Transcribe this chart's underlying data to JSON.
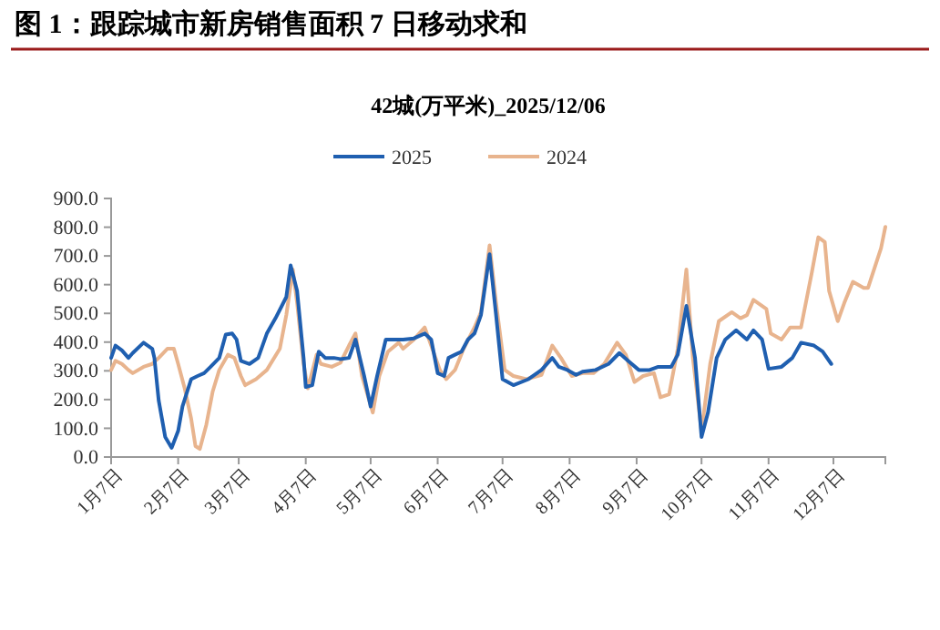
{
  "chart_data": {
    "type": "line",
    "title": "图 1：跟踪城市新房销售面积 7 日移动求和",
    "subtitle": "42城(万平米)_2025/12/06",
    "legend": "top",
    "grid": false,
    "marker": "none",
    "line_style": "solid",
    "xlim": [
      "--01-07",
      "--12-31"
    ],
    "xticks": [
      {
        "value": "--01-07",
        "label": "1月7日"
      },
      {
        "value": "--02-07",
        "label": "2月7日"
      },
      {
        "value": "--03-07",
        "label": "3月7日"
      },
      {
        "value": "--04-07",
        "label": "4月7日"
      },
      {
        "value": "--05-07",
        "label": "5月7日"
      },
      {
        "value": "--06-07",
        "label": "6月7日"
      },
      {
        "value": "--07-07",
        "label": "7月7日"
      },
      {
        "value": "--08-07",
        "label": "8月7日"
      },
      {
        "value": "--09-07",
        "label": "9月7日"
      },
      {
        "value": "--10-07",
        "label": "10月7日"
      },
      {
        "value": "--11-07",
        "label": "11月7日"
      },
      {
        "value": "--12-07",
        "label": "12月7日"
      }
    ],
    "ylim": [
      0,
      900
    ],
    "yticks": [
      {
        "value": 0,
        "label": "0.0"
      },
      {
        "value": 100,
        "label": "100.0"
      },
      {
        "value": 200,
        "label": "200.0"
      },
      {
        "value": 300,
        "label": "300.0"
      },
      {
        "value": 400,
        "label": "400.0"
      },
      {
        "value": 500,
        "label": "500.0"
      },
      {
        "value": 600,
        "label": "600.0"
      },
      {
        "value": 700,
        "label": "700.0"
      },
      {
        "value": 800,
        "label": "800.0"
      },
      {
        "value": 900,
        "label": "900.0"
      }
    ],
    "series": [
      {
        "name": "2025",
        "color": "#1f5fb0",
        "x": [
          "--01-07",
          "--01-09",
          "--01-12",
          "--01-15",
          "--01-17",
          "--01-22",
          "--01-26",
          "--01-27",
          "--01-29",
          "--02-01",
          "--02-04",
          "--02-07",
          "--02-09",
          "--02-13",
          "--02-16",
          "--02-19",
          "--02-22",
          "--02-26",
          "--03-01",
          "--03-04",
          "--03-06",
          "--03-08",
          "--03-12",
          "--03-16",
          "--03-20",
          "--03-24",
          "--03-29",
          "--03-31",
          "--04-03",
          "--04-06",
          "--04-07",
          "--04-10",
          "--04-13",
          "--04-16",
          "--04-20",
          "--04-23",
          "--04-27",
          "--04-30",
          "--05-04",
          "--05-07",
          "--05-10",
          "--05-14",
          "--05-18",
          "--05-22",
          "--05-27",
          "--06-01",
          "--06-04",
          "--06-07",
          "--06-10",
          "--06-12",
          "--06-15",
          "--06-18",
          "--06-21",
          "--06-24",
          "--06-27",
          "--07-01",
          "--07-04",
          "--07-07",
          "--07-12",
          "--07-19",
          "--07-25",
          "--07-30",
          "--08-02",
          "--08-06",
          "--08-10",
          "--08-13",
          "--08-19",
          "--08-25",
          "--08-30",
          "--09-03",
          "--09-08",
          "--09-13",
          "--09-17",
          "--09-23",
          "--09-26",
          "--09-30",
          "--10-04",
          "--10-07",
          "--10-10",
          "--10-14",
          "--10-18",
          "--10-23",
          "--10-28",
          "--10-31",
          "--11-04",
          "--11-07",
          "--11-13",
          "--11-18",
          "--11-22",
          "--11-28",
          "--12-02",
          "--12-06"
        ],
        "values": [
          345,
          388,
          371,
          345,
          362,
          398,
          377,
          345,
          197,
          70,
          32,
          91,
          176,
          271,
          282,
          292,
          314,
          345,
          426,
          430,
          409,
          335,
          324,
          345,
          430,
          483,
          557,
          667,
          578,
          345,
          244,
          250,
          367,
          345,
          345,
          341,
          345,
          409,
          282,
          176,
          282,
          409,
          409,
          409,
          413,
          430,
          409,
          292,
          282,
          345,
          356,
          367,
          409,
          430,
          494,
          706,
          494,
          271,
          250,
          271,
          303,
          345,
          314,
          303,
          286,
          297,
          303,
          324,
          362,
          335,
          303,
          303,
          314,
          314,
          356,
          526,
          345,
          70,
          155,
          345,
          409,
          441,
          409,
          441,
          409,
          307,
          314,
          345,
          398,
          388,
          367,
          324
        ]
      },
      {
        "name": "2024",
        "color": "#e8b48e",
        "x": [
          "--01-07",
          "--01-09",
          "--01-12",
          "--01-15",
          "--01-17",
          "--01-22",
          "--01-26",
          "--01-29",
          "--02-02",
          "--02-05",
          "--02-07",
          "--02-10",
          "--02-13",
          "--02-15",
          "--02-17",
          "--02-20",
          "--02-23",
          "--02-26",
          "--03-02",
          "--03-05",
          "--03-08",
          "--03-10",
          "--03-15",
          "--03-20",
          "--03-26",
          "--03-29",
          "--04-01",
          "--04-03",
          "--04-06",
          "--04-08",
          "--04-12",
          "--04-14",
          "--04-19",
          "--04-23",
          "--04-27",
          "--04-30",
          "--05-03",
          "--05-08",
          "--05-11",
          "--05-15",
          "--05-20",
          "--05-22",
          "--05-27",
          "--06-01",
          "--06-04",
          "--06-08",
          "--06-11",
          "--06-15",
          "--06-19",
          "--06-24",
          "--06-27",
          "--07-01",
          "--07-04",
          "--07-08",
          "--07-12",
          "--07-18",
          "--07-25",
          "--07-30",
          "--08-03",
          "--08-08",
          "--08-13",
          "--08-18",
          "--08-23",
          "--08-29",
          "--09-02",
          "--09-06",
          "--09-10",
          "--09-15",
          "--09-18",
          "--09-22",
          "--09-26",
          "--09-30",
          "--10-03",
          "--10-07",
          "--10-11",
          "--10-15",
          "--10-21",
          "--10-25",
          "--10-28",
          "--10-31",
          "--11-06",
          "--11-08",
          "--11-13",
          "--11-17",
          "--11-22",
          "--11-27",
          "--11-30",
          "--12-03",
          "--12-05",
          "--12-09",
          "--12-12",
          "--12-16",
          "--12-21",
          "--12-23",
          "--12-29",
          "--12-31"
        ],
        "values": [
          303,
          335,
          324,
          303,
          292,
          314,
          324,
          345,
          377,
          377,
          324,
          239,
          134,
          38,
          28,
          112,
          229,
          303,
          356,
          345,
          282,
          250,
          271,
          303,
          377,
          494,
          653,
          536,
          324,
          239,
          356,
          324,
          314,
          328,
          388,
          430,
          282,
          155,
          282,
          367,
          398,
          377,
          409,
          451,
          388,
          303,
          271,
          303,
          377,
          451,
          504,
          737,
          536,
          303,
          282,
          271,
          286,
          388,
          345,
          282,
          292,
          292,
          324,
          398,
          356,
          261,
          282,
          292,
          208,
          218,
          377,
          653,
          345,
          91,
          324,
          473,
          504,
          483,
          494,
          547,
          515,
          430,
          409,
          451,
          451,
          642,
          765,
          748,
          578,
          473,
          536,
          610,
          589,
          589,
          727,
          801
        ]
      }
    ]
  }
}
